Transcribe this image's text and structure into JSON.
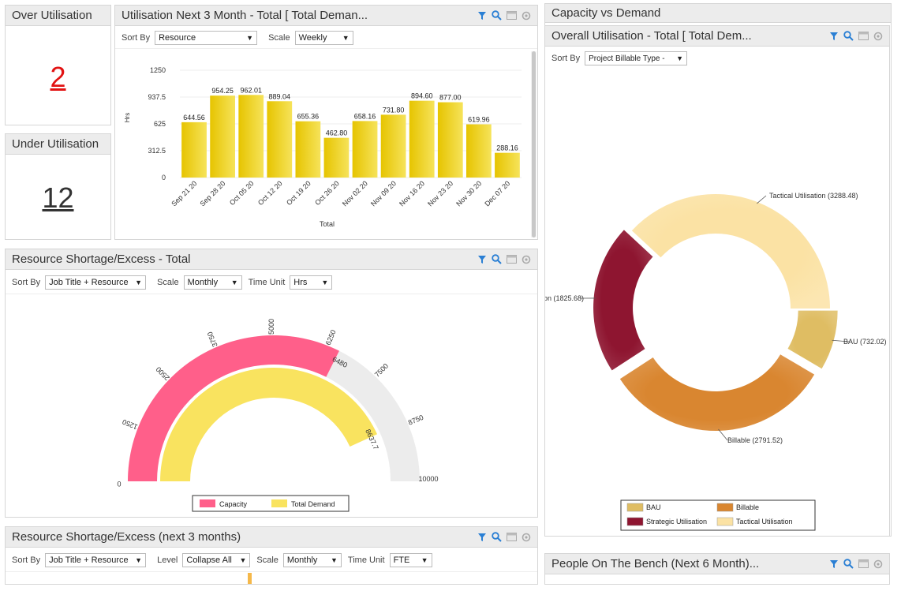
{
  "over_util": {
    "title": "Over Utilisation",
    "value": "2"
  },
  "under_util": {
    "title": "Under Utilisation",
    "value": "12"
  },
  "util_next": {
    "title": "Utilisation Next 3 Month - Total [ Total Deman...",
    "sort_label": "Sort By",
    "sort_value": "Resource",
    "scale_label": "Scale",
    "scale_value": "Weekly"
  },
  "capacity_demand": {
    "title": "Capacity vs Demand"
  },
  "overall": {
    "title": "Overall Utilisation - Total [ Total Dem...",
    "sort_label": "Sort By",
    "sort_value": "Project Billable Type -"
  },
  "shortage": {
    "title": "Resource Shortage/Excess - Total",
    "sort_label": "Sort By",
    "sort_value": "Job Title + Resource",
    "scale_label": "Scale",
    "scale_value": "Monthly",
    "unit_label": "Time Unit",
    "unit_value": "Hrs"
  },
  "shortage3": {
    "title": "Resource Shortage/Excess (next 3 months)",
    "sort_label": "Sort By",
    "sort_value": "Job Title + Resource",
    "level_label": "Level",
    "level_value": "Collapse All",
    "scale_label": "Scale",
    "scale_value": "Monthly",
    "unit_label": "Time Unit",
    "unit_value": "FTE"
  },
  "bench": {
    "title": "People On The Bench (Next 6 Month)..."
  },
  "chart_data": [
    {
      "type": "bar",
      "categories": [
        "Sep 21 20",
        "Sep 28 20",
        "Oct 05 20",
        "Oct 12 20",
        "Oct 19 20",
        "Oct 26 20",
        "Nov 02 20",
        "Nov 09 20",
        "Nov 16 20",
        "Nov 23 20",
        "Nov 30 20",
        "Dec 07 20"
      ],
      "values": [
        644.56,
        954.25,
        962.01,
        889.04,
        655.36,
        462.8,
        658.16,
        731.8,
        894.6,
        877.0,
        619.96,
        288.16
      ],
      "value_labels": [
        "644.56",
        "954.25",
        "962.01",
        "889.04",
        "655.36",
        "462.80",
        "658.16",
        "731.80",
        "894.60",
        "877.00",
        "619.96",
        "288.16"
      ],
      "yticks": [
        "0",
        "312.5",
        "625",
        "937.5",
        "1250"
      ],
      "ylim": [
        0,
        1250
      ],
      "ylabel": "Hrs",
      "xlabel": "Total",
      "color": "#e8c800"
    },
    {
      "type": "gauge",
      "min": 0,
      "max": 10000,
      "ticks": [
        "0",
        "1250",
        "2500",
        "3750",
        "5000",
        "6250",
        "7500",
        "8750",
        "10000"
      ],
      "series": [
        {
          "name": "Capacity",
          "value": 6480,
          "label": "6480",
          "color": "#ff5f8a"
        },
        {
          "name": "Total Demand",
          "value": 8637.7,
          "label": "8637.7",
          "color": "#f9e35f"
        }
      ],
      "track_color": "#ececec"
    },
    {
      "type": "pie",
      "labels": [
        "BAU",
        "Billable",
        "Strategic Utilisation",
        "Tactical Utilisation"
      ],
      "values": [
        732.02,
        2791.52,
        1825.68,
        3288.48
      ],
      "callouts": [
        "BAU (732.02)",
        "Billable (2791.52)",
        "on (1825.68)",
        "Tactical Utilisation (3288.48)"
      ],
      "colors": [
        "#dfbd63",
        "#d98630",
        "#8e1530",
        "#fbe2a4"
      ]
    }
  ]
}
